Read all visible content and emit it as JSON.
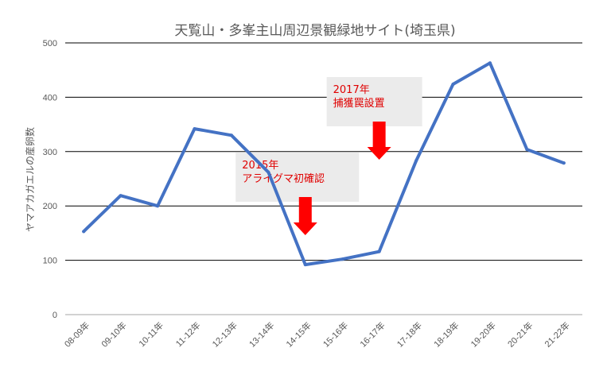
{
  "chart_data": {
    "type": "line",
    "title": "天覧山・多峯主山周辺景観緑地サイト(埼玉県)",
    "xlabel": "",
    "ylabel": "ヤマアカガエルの産卵数",
    "ylim": [
      0,
      500
    ],
    "yticks": [
      0,
      100,
      200,
      300,
      400,
      500
    ],
    "grid": true,
    "categories": [
      "08-09年",
      "09-10年",
      "10-11年",
      "11-12年",
      "12-13年",
      "13-14年",
      "14-15年",
      "15-16年",
      "16-17年",
      "17-18年",
      "18-19年",
      "19-20年",
      "20-21年",
      "21-22年"
    ],
    "series": [
      {
        "values": [
          153,
          219,
          200,
          342,
          330,
          262,
          92,
          102,
          116,
          283,
          424,
          463,
          304,
          279
        ],
        "color": "#4472c4"
      }
    ],
    "annotations": [
      {
        "text": [
          "2015年",
          "アライグマ初確認"
        ],
        "category": "14-15年",
        "arrow_color": "#ff0000"
      },
      {
        "text": [
          "2017年",
          "捕獲罠設置"
        ],
        "category": "16-17年",
        "arrow_color": "#ff0000"
      }
    ]
  }
}
